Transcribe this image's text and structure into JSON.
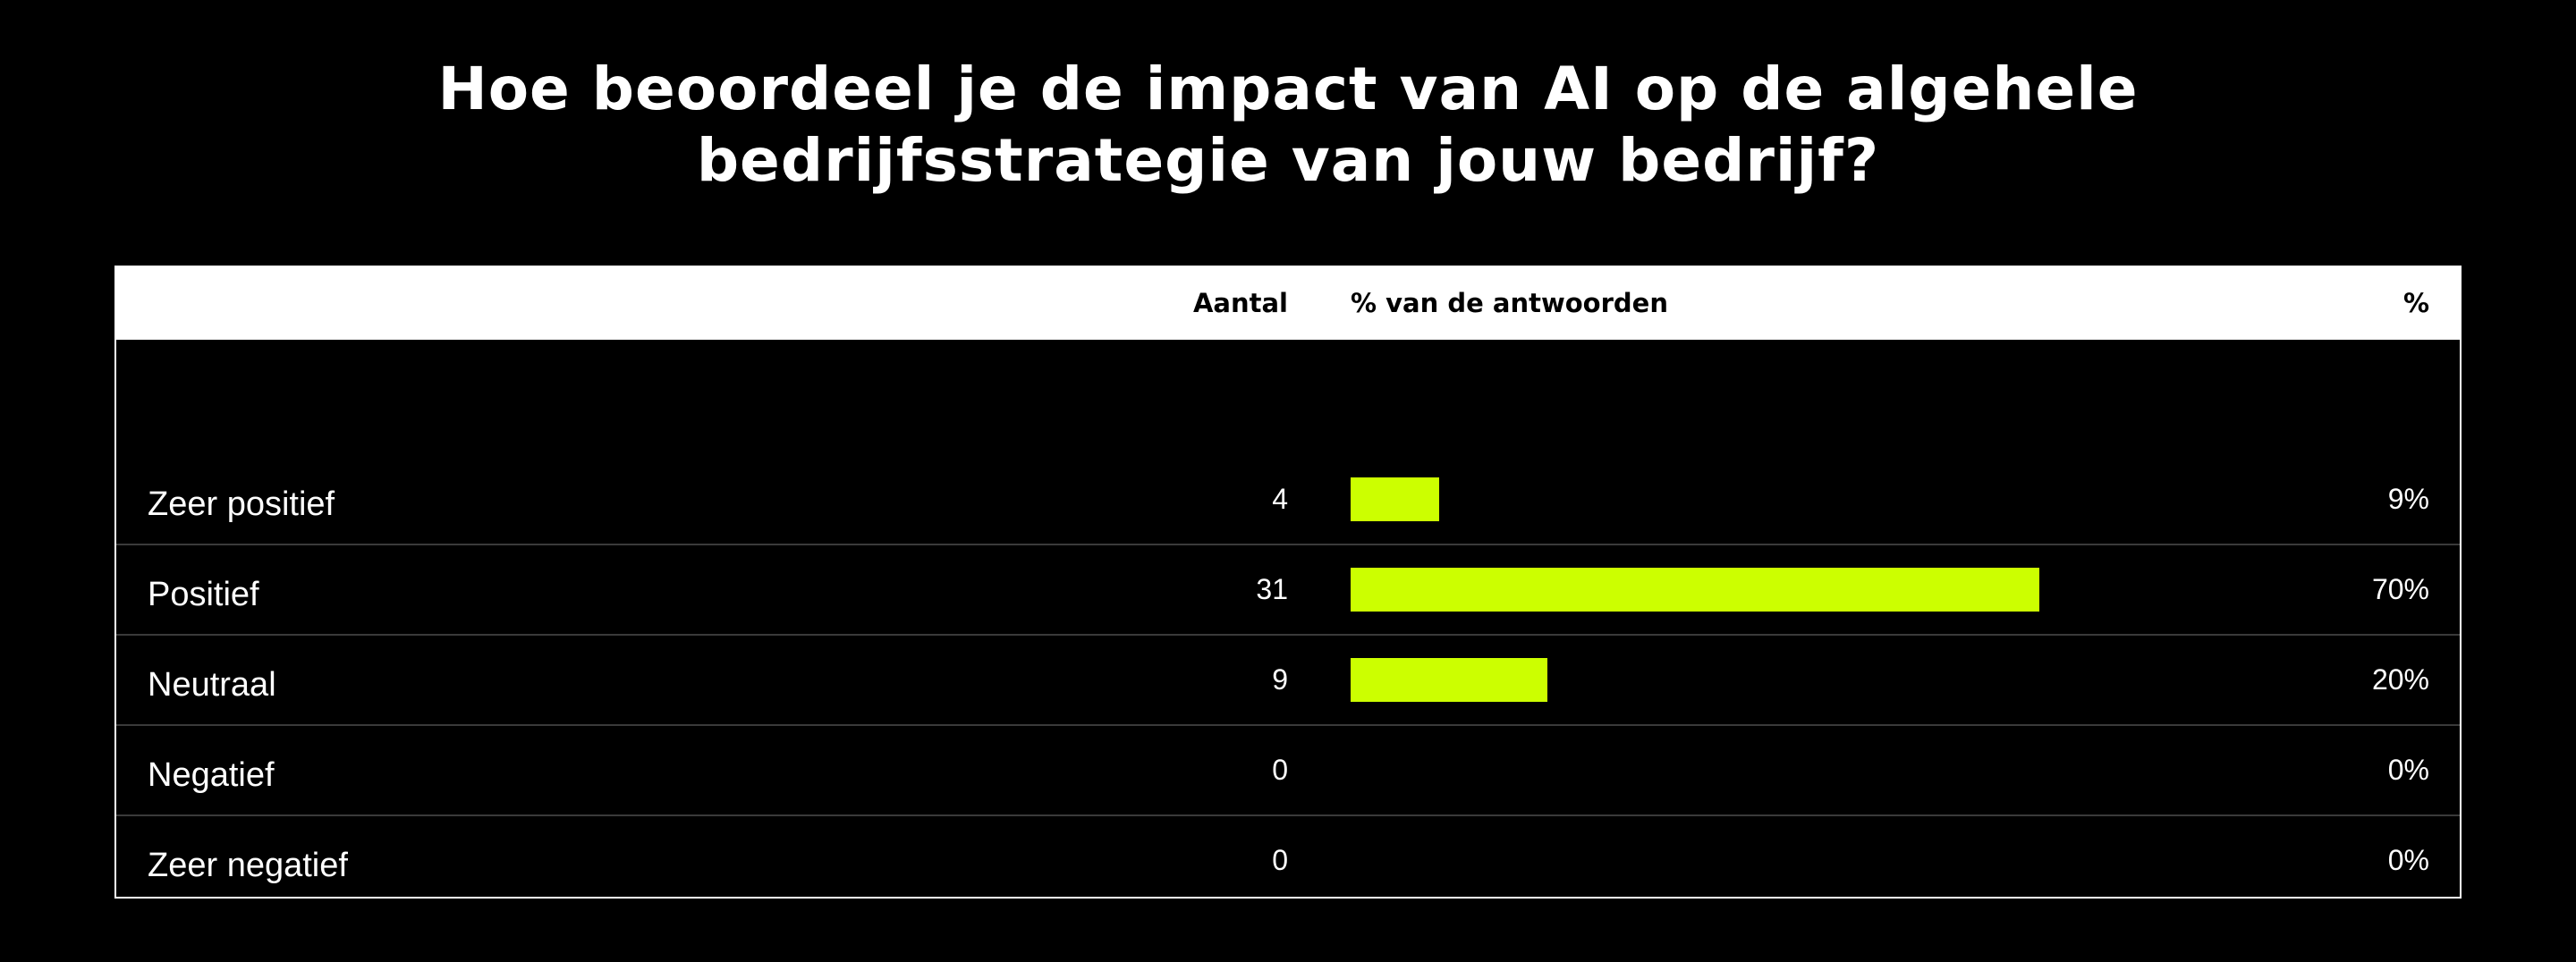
{
  "title_lines": [
    "Hoe beoordeel je de impact van AI op de algehele",
    "bedrijfsstrategie van jouw bedrijf?"
  ],
  "table": {
    "headers": {
      "label": "",
      "count": "Aantal",
      "bar": "% van de antwoorden",
      "pct": "%"
    }
  },
  "colors": {
    "background": "#000000",
    "bar": "#ccff00",
    "header_bg": "#ffffff"
  },
  "chart_data": {
    "type": "bar",
    "orientation": "horizontal",
    "title": "Hoe beoordeel je de impact van AI op de algehele bedrijfsstrategie van jouw bedrijf?",
    "categories": [
      "Zeer positief",
      "Positief",
      "Neutraal",
      "Negatief",
      "Zeer negatief"
    ],
    "counts": [
      4,
      31,
      9,
      0,
      0
    ],
    "values": [
      9,
      70,
      20,
      0,
      0
    ],
    "value_labels": [
      "9%",
      "70%",
      "20%",
      "0%",
      "0%"
    ],
    "xlim": [
      0,
      100
    ],
    "grid": false
  }
}
